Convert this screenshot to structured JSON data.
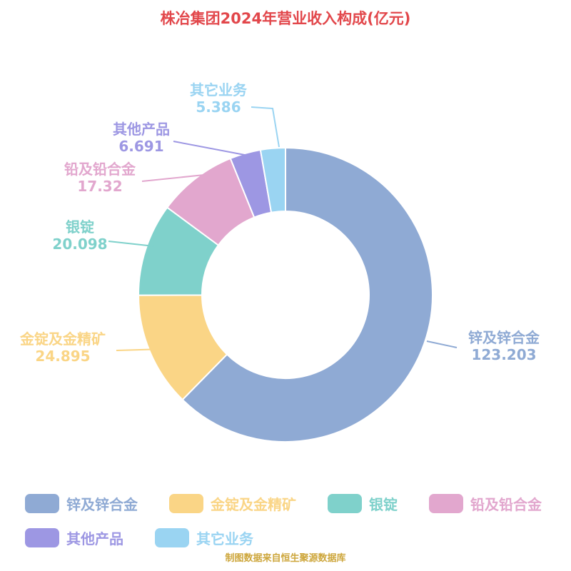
{
  "title": "株冶集团2024年营业收入构成(亿元)",
  "footer": {
    "credit": "制图数据来自恒生聚源数据库"
  },
  "chart_data": {
    "type": "pie",
    "title": "株冶集团2024年营业收入构成(亿元)",
    "unit": "亿元",
    "donut": true,
    "inner_radius_ratio": 0.57,
    "legend_position": "bottom",
    "categories": [
      "锌及锌合金",
      "金锭及金精矿",
      "银锭",
      "铅及铅合金",
      "其他产品",
      "其它业务"
    ],
    "values": [
      123.203,
      24.895,
      20.098,
      17.32,
      6.691,
      5.386
    ],
    "value_labels": [
      "123.203",
      "24.895",
      "20.098",
      "17.32",
      "6.691",
      "5.386"
    ],
    "colors": [
      "#8faad4",
      "#fad586",
      "#7fd1cb",
      "#e2a7ce",
      "#9d97e3",
      "#9ad4f2"
    ]
  }
}
